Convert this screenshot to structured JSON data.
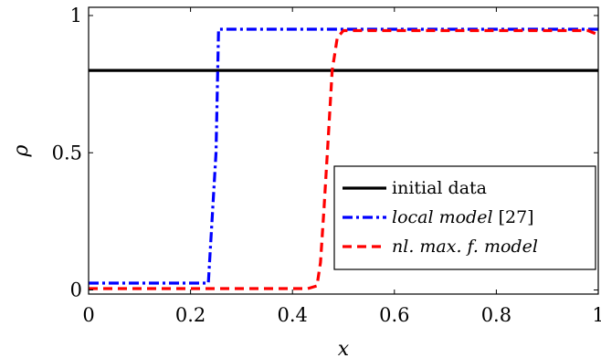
{
  "chart_data": {
    "type": "line",
    "xlabel": "x",
    "ylabel": "ρ",
    "xlim": [
      0,
      1
    ],
    "ylim": [
      -0.015,
      1.03
    ],
    "xticks": [
      0,
      0.2,
      0.4,
      0.6,
      0.8,
      1
    ],
    "xtick_labels": [
      "0",
      "0.2",
      "0.4",
      "0.6",
      "0.8",
      "1"
    ],
    "yticks": [
      0,
      0.5,
      1
    ],
    "ytick_labels": [
      "0",
      "0.5",
      "1"
    ],
    "grid": false,
    "legend_position": "lower-right",
    "series": [
      {
        "name": "initial data",
        "legend_label": "initial data",
        "legend_cite": "",
        "color": "#000000",
        "style": "solid",
        "x": [
          0,
          1
        ],
        "y": [
          0.8,
          0.8
        ]
      },
      {
        "name": "local model",
        "legend_label": "local model",
        "legend_cite": "[27]",
        "color": "#0000ff",
        "style": "dashdot",
        "x": [
          0,
          0.235,
          0.25,
          0.255,
          1
        ],
        "y": [
          0.025,
          0.025,
          0.5,
          0.95,
          0.95
        ]
      },
      {
        "name": "nl. max. f. model",
        "legend_label": "nl. max. f. model",
        "legend_cite": "",
        "color": "#ff0000",
        "style": "dashed",
        "x": [
          0,
          0.43,
          0.448,
          0.455,
          0.462,
          0.47,
          0.478,
          0.488,
          0.5,
          0.98,
          1
        ],
        "y": [
          0.005,
          0.005,
          0.015,
          0.1,
          0.3,
          0.55,
          0.8,
          0.92,
          0.945,
          0.945,
          0.93
        ]
      }
    ]
  }
}
